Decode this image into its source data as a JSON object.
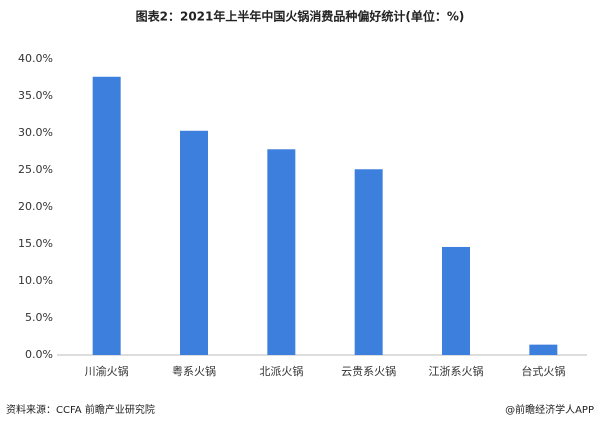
{
  "chart_data": {
    "type": "bar",
    "title": "图表2：2021年上半年中国火锅消费品种偏好统计(单位：%)",
    "categories": [
      "川渝火锅",
      "粤系火锅",
      "北派火锅",
      "云贵系火锅",
      "江浙系火锅",
      "台式火锅"
    ],
    "values": [
      37.6,
      30.3,
      27.8,
      25.1,
      14.6,
      1.4
    ],
    "color": "#3d7fdc",
    "ylim": [
      0,
      40
    ],
    "yticks": [
      {
        "value": 0,
        "label": "0.0%"
      },
      {
        "value": 5,
        "label": "5.0%"
      },
      {
        "value": 10,
        "label": "10.0%"
      },
      {
        "value": 15,
        "label": "15.0%"
      },
      {
        "value": 20,
        "label": "20.0%"
      },
      {
        "value": 25,
        "label": "25.0%"
      },
      {
        "value": 30,
        "label": "30.0%"
      },
      {
        "value": 35,
        "label": "35.0%"
      },
      {
        "value": 40,
        "label": "40.0%"
      }
    ],
    "grid": false,
    "source": "资料来源：CCFA 前瞻产业研究院",
    "credit": "@前瞻经济学人APP"
  }
}
